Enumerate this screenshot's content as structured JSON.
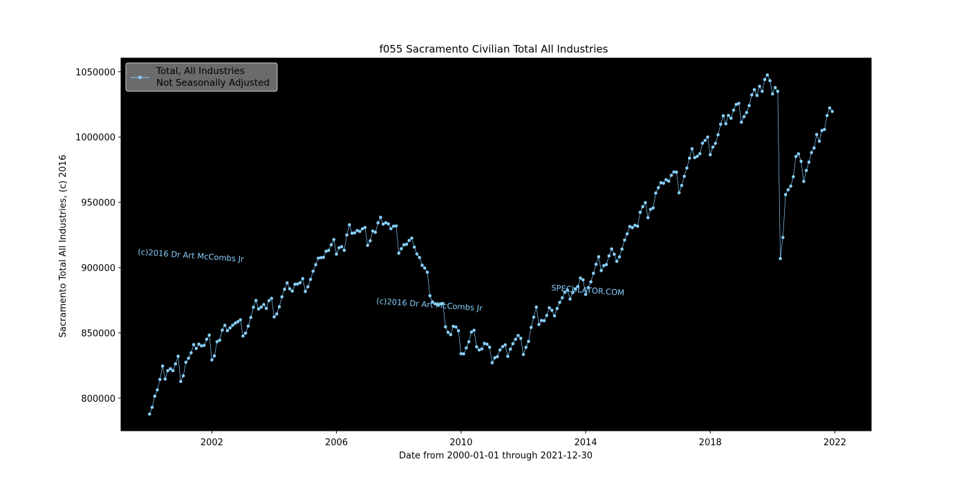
{
  "chart_data": {
    "type": "line",
    "title": "f055 Sacramento Civilian Total All Industries",
    "xlabel": "Date from 2000-01-01 through 2021-12-30",
    "ylabel": "Sacramento Total All Industries, (c) 2016",
    "x_start": "2000-01",
    "x_frequency": "monthly",
    "xlim": [
      "1999-02-01",
      "2023-03-01"
    ],
    "ylim": [
      775000,
      1060500
    ],
    "x_ticks": [
      "2002",
      "2006",
      "2010",
      "2014",
      "2018",
      "2022"
    ],
    "y_ticks": [
      "800000",
      "850000",
      "900000",
      "950000",
      "1000000",
      "1050000"
    ],
    "grid": false,
    "background": "#000000",
    "legend": {
      "placement": "top-left",
      "lines": [
        "Total, All Industries",
        "Not Seasonally Adjusted"
      ]
    },
    "watermarks": [
      "(c)2016 Dr Art McCombs Jr",
      "(c)2016 Dr Art McCombs Jr",
      "SPECULATOR.COM"
    ],
    "series": [
      {
        "name": "Total, All Industries Not Seasonally Adjusted",
        "color": "#87CEFA",
        "values": [
          787800,
          793000,
          801500,
          806300,
          814300,
          824600,
          814600,
          821000,
          822500,
          821100,
          826200,
          832100,
          812800,
          817100,
          827500,
          830600,
          834700,
          841000,
          838000,
          841400,
          840000,
          840400,
          845100,
          848300,
          829300,
          832400,
          843200,
          844400,
          852100,
          855800,
          851700,
          853800,
          855800,
          857400,
          858500,
          860000,
          847600,
          849800,
          855200,
          861800,
          869600,
          874800,
          868300,
          869700,
          871700,
          868700,
          874700,
          876500,
          862200,
          864500,
          870000,
          877600,
          883400,
          888300,
          883800,
          882000,
          887300,
          887400,
          888400,
          891600,
          881700,
          885300,
          891000,
          897200,
          902300,
          907200,
          907600,
          907800,
          912500,
          913200,
          917500,
          921500,
          910300,
          915200,
          916000,
          913200,
          925000,
          932800,
          926300,
          926600,
          928400,
          927700,
          929700,
          930700,
          917000,
          920500,
          928000,
          927000,
          934300,
          938500,
          933300,
          934400,
          933500,
          929800,
          931700,
          931900,
          911000,
          914500,
          917500,
          917800,
          920800,
          922600,
          915700,
          910400,
          907700,
          901800,
          899700,
          896400,
          878400,
          873700,
          872200,
          871500,
          872200,
          872500,
          854600,
          850400,
          848600,
          855000,
          854500,
          851600,
          834000,
          833900,
          838500,
          843200,
          850600,
          852000,
          839300,
          836900,
          837700,
          841900,
          841300,
          839000,
          827100,
          830900,
          831800,
          836900,
          839400,
          840800,
          832000,
          837500,
          841700,
          845100,
          848000,
          845800,
          833400,
          838900,
          843500,
          854200,
          862000,
          869800,
          856400,
          859500,
          859300,
          863400,
          869200,
          867300,
          863000,
          868600,
          873300,
          876900,
          881100,
          882800,
          875900,
          880900,
          883700,
          885500,
          892000,
          890600,
          879500,
          884700,
          889100,
          895600,
          902500,
          908300,
          897700,
          901500,
          902300,
          909000,
          914300,
          910200,
          904800,
          908200,
          914200,
          921100,
          925800,
          931500,
          930600,
          932400,
          931700,
          942400,
          946700,
          949700,
          938200,
          944600,
          945700,
          957100,
          961200,
          965000,
          964600,
          967300,
          966200,
          970700,
          973300,
          973100,
          957300,
          962900,
          969900,
          976300,
          983800,
          991000,
          984200,
          985200,
          987200,
          995300,
          997400,
          1000000,
          986500,
          992300,
          995200,
          1001800,
          1009800,
          1016300,
          1010200,
          1016600,
          1014400,
          1020600,
          1025000,
          1025800,
          1011400,
          1015600,
          1018800,
          1024100,
          1032300,
          1036300,
          1031900,
          1038900,
          1035000,
          1044100,
          1047600,
          1043200,
          1033000,
          1037900,
          1035000,
          906900,
          923100,
          955900,
          959600,
          962400,
          969600,
          985100,
          987100,
          981400,
          966000,
          974400,
          980800,
          988100,
          991700,
          1002000,
          996800,
          1005000,
          1005800,
          1016500,
          1022300,
          1019600
        ]
      }
    ]
  }
}
